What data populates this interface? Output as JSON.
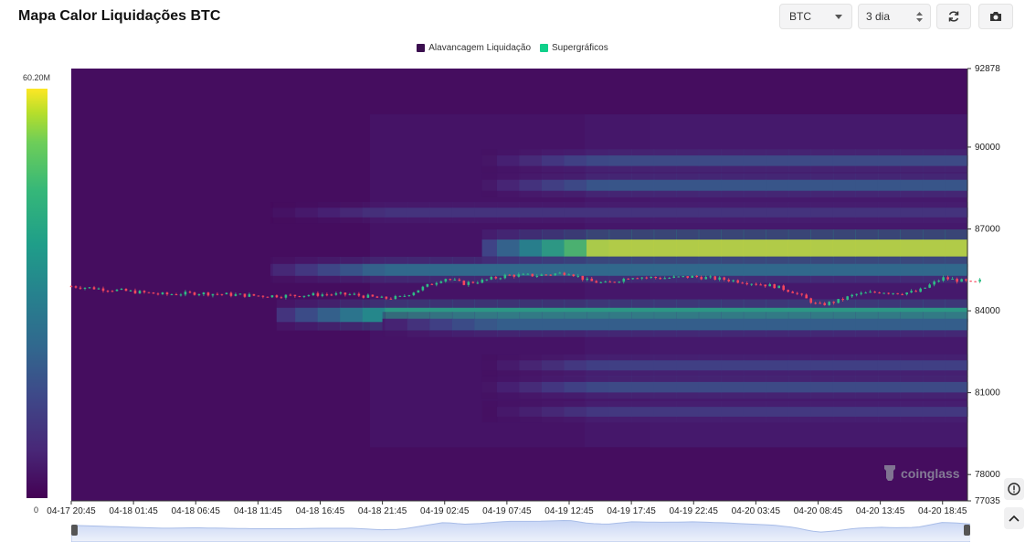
{
  "header": {
    "title": "Mapa Calor Liquidações BTC"
  },
  "controls": {
    "coin": "BTC",
    "range": "3 dia"
  },
  "icons": {
    "refresh": "refresh-icon",
    "camera": "camera-icon",
    "caret": "caret-down-icon",
    "stepper": "stepper-icon",
    "help": "help-circle-icon",
    "up": "chevron-up-icon"
  },
  "legend": [
    {
      "label": "Alavancagem Liquidação",
      "color": "#3b0f4f"
    },
    {
      "label": "Supergráficos",
      "color": "#10d08a"
    }
  ],
  "colorbar": {
    "max_label": "60.20M",
    "min_label": "0"
  },
  "watermark": "coinglass",
  "chart_data": {
    "type": "heatmap",
    "title": "Mapa Calor Liquidações BTC",
    "x_labels": [
      "04-17 20:45",
      "04-18 01:45",
      "04-18 06:45",
      "04-18 11:45",
      "04-18 16:45",
      "04-18 21:45",
      "04-19 02:45",
      "04-19 07:45",
      "04-19 12:45",
      "04-19 17:45",
      "04-19 22:45",
      "04-20 03:45",
      "04-20 08:45",
      "04-20 13:45",
      "04-20 18:45"
    ],
    "y_ticks": [
      92878,
      90000,
      87000,
      84000,
      81000,
      78000,
      77035
    ],
    "ylim": [
      77035,
      92878
    ],
    "colorbar_range": [
      0,
      60200000
    ],
    "price_path": [
      [
        0,
        84900
      ],
      [
        0.5,
        84800
      ],
      [
        1,
        84700
      ],
      [
        1.5,
        84600
      ],
      [
        2,
        84650
      ],
      [
        2.5,
        84600
      ],
      [
        3,
        84550
      ],
      [
        3.5,
        84550
      ],
      [
        4,
        84600
      ],
      [
        4.5,
        84600
      ],
      [
        5,
        84450
      ],
      [
        5.3,
        84500
      ],
      [
        5.6,
        84800
      ],
      [
        6,
        85200
      ],
      [
        6.3,
        85000
      ],
      [
        6.6,
        85100
      ],
      [
        7,
        85300
      ],
      [
        7.5,
        85300
      ],
      [
        8,
        85400
      ],
      [
        8.3,
        85100
      ],
      [
        8.6,
        85000
      ],
      [
        9,
        85250
      ],
      [
        9.5,
        85200
      ],
      [
        10,
        85250
      ],
      [
        10.5,
        85150
      ],
      [
        11,
        85000
      ],
      [
        11.3,
        84900
      ],
      [
        11.6,
        84700
      ],
      [
        12,
        84200
      ],
      [
        12.3,
        84350
      ],
      [
        12.6,
        84600
      ],
      [
        13,
        84700
      ],
      [
        13.3,
        84650
      ],
      [
        13.6,
        84700
      ],
      [
        14,
        85200
      ],
      [
        14.3,
        85100
      ],
      [
        14.5,
        85000
      ],
      [
        14.6,
        85100
      ]
    ],
    "bands": [
      {
        "price": 86300,
        "t_start": 6.6,
        "intensity": 1.0
      },
      {
        "price": 83850,
        "t_start": 3.3,
        "intensity": 0.7
      },
      {
        "price": 85500,
        "t_start": 3.2,
        "intensity": 0.45
      },
      {
        "price": 83500,
        "t_start": 5.0,
        "intensity": 0.4
      },
      {
        "price": 88600,
        "t_start": 6.6,
        "intensity": 0.35
      },
      {
        "price": 89500,
        "t_start": 6.6,
        "intensity": 0.3
      },
      {
        "price": 81200,
        "t_start": 6.6,
        "intensity": 0.3
      },
      {
        "price": 80300,
        "t_start": 6.6,
        "intensity": 0.22
      },
      {
        "price": 82000,
        "t_start": 6.6,
        "intensity": 0.25
      },
      {
        "price": 87600,
        "t_start": 3.2,
        "intensity": 0.2
      }
    ]
  }
}
